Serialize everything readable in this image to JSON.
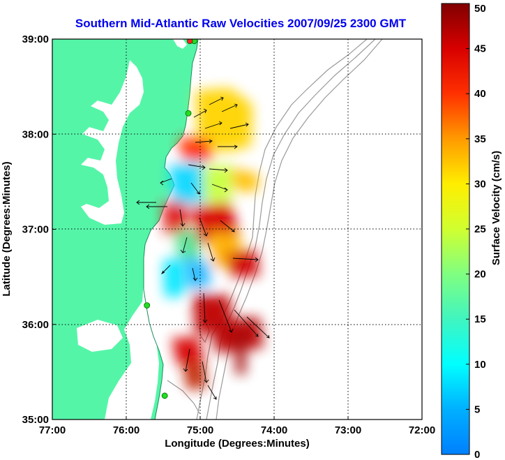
{
  "title": "Southern Mid-Atlantic Raw Velocities 2007/09/25 2300 GMT",
  "map": {
    "xlabel": "Longitude (Degrees:Minutes)",
    "ylabel": "Latitude (Degrees:Minutes)",
    "lon_range": [
      -77,
      -72
    ],
    "lat_range": [
      35,
      39
    ],
    "lon_ticks": [
      {
        "value": -77,
        "label": "77:00"
      },
      {
        "value": -76,
        "label": "76:00"
      },
      {
        "value": -75,
        "label": "75:00"
      },
      {
        "value": -74,
        "label": "74:00"
      },
      {
        "value": -73,
        "label": "73:00"
      },
      {
        "value": -72,
        "label": "72:00"
      }
    ],
    "lat_ticks": [
      {
        "value": 39,
        "label": "39:00"
      },
      {
        "value": 38,
        "label": "38:00"
      },
      {
        "value": 37,
        "label": "37:00"
      },
      {
        "value": 36,
        "label": "36:00"
      },
      {
        "value": 35,
        "label": "35:00"
      }
    ],
    "grid": true,
    "colors": {
      "land": "#55f5a8",
      "water": "#ffffff",
      "bathymetry": "#9a9a9a",
      "station": "#22dd22",
      "station_alt": "#ff2222",
      "vectors": "#000000"
    },
    "stations": [
      {
        "lon": -75.08,
        "lat": 38.98,
        "color": "#22dd22"
      },
      {
        "lon": -75.14,
        "lat": 38.98,
        "color": "#ff2222"
      },
      {
        "lon": -75.16,
        "lat": 38.22,
        "color": "#22dd22"
      },
      {
        "lon": -75.72,
        "lat": 36.2,
        "color": "#22dd22"
      },
      {
        "lon": -75.48,
        "lat": 35.25,
        "color": "#22dd22"
      }
    ]
  },
  "colorbar": {
    "label": "Surface Velocity (cm/s)",
    "min": 0,
    "max": 50,
    "ticks": [
      {
        "value": 0,
        "label": "0"
      },
      {
        "value": 5,
        "label": "5"
      },
      {
        "value": 10,
        "label": "10"
      },
      {
        "value": 15,
        "label": "15"
      },
      {
        "value": 20,
        "label": "20"
      },
      {
        "value": 25,
        "label": "25"
      },
      {
        "value": 30,
        "label": "30"
      },
      {
        "value": 35,
        "label": "35"
      },
      {
        "value": 40,
        "label": "40"
      },
      {
        "value": 45,
        "label": "45"
      },
      {
        "value": 50,
        "label": "50"
      }
    ]
  },
  "chart_data": {
    "type": "heatmap",
    "title": "Southern Mid-Atlantic Raw Velocities 2007/09/25 2300 GMT",
    "xlabel": "Longitude (Degrees:Minutes)",
    "ylabel": "Latitude (Degrees:Minutes)",
    "xlim": [
      -77,
      -72
    ],
    "ylim": [
      35,
      39
    ],
    "value_label": "Surface Velocity (cm/s)",
    "value_range": [
      0,
      50
    ],
    "grid": true,
    "velocity_regions": [
      {
        "lon": -74.85,
        "lat": 38.35,
        "speed": 28
      },
      {
        "lon": -74.75,
        "lat": 38.2,
        "speed": 25
      },
      {
        "lon": -74.6,
        "lat": 38.0,
        "speed": 30
      },
      {
        "lon": -75.2,
        "lat": 37.9,
        "speed": 42
      },
      {
        "lon": -75.35,
        "lat": 37.5,
        "speed": 14
      },
      {
        "lon": -75.1,
        "lat": 37.45,
        "speed": 18
      },
      {
        "lon": -74.8,
        "lat": 37.55,
        "speed": 24
      },
      {
        "lon": -74.55,
        "lat": 37.45,
        "speed": 30
      },
      {
        "lon": -75.35,
        "lat": 37.2,
        "speed": 40
      },
      {
        "lon": -74.95,
        "lat": 37.05,
        "speed": 45
      },
      {
        "lon": -74.7,
        "lat": 37.0,
        "speed": 38
      },
      {
        "lon": -75.2,
        "lat": 36.85,
        "speed": 22
      },
      {
        "lon": -74.85,
        "lat": 36.75,
        "speed": 28
      },
      {
        "lon": -74.45,
        "lat": 36.65,
        "speed": 46
      },
      {
        "lon": -75.35,
        "lat": 36.55,
        "speed": 10
      },
      {
        "lon": -75.05,
        "lat": 36.6,
        "speed": 16
      },
      {
        "lon": -74.9,
        "lat": 36.15,
        "speed": 44
      },
      {
        "lon": -74.55,
        "lat": 36.0,
        "speed": 47
      },
      {
        "lon": -74.45,
        "lat": 35.75,
        "speed": 48
      },
      {
        "lon": -75.15,
        "lat": 35.55,
        "speed": 40
      },
      {
        "lon": -75.0,
        "lat": 35.35,
        "speed": 38
      }
    ],
    "vectors": [
      {
        "lon": -74.9,
        "lat": 38.35,
        "u": 14,
        "v": 10
      },
      {
        "lon": -74.75,
        "lat": 38.25,
        "u": 16,
        "v": 8
      },
      {
        "lon": -74.6,
        "lat": 38.1,
        "u": 18,
        "v": 4
      },
      {
        "lon": -75.0,
        "lat": 38.05,
        "u": 14,
        "v": 6
      },
      {
        "lon": -74.8,
        "lat": 37.95,
        "u": 18,
        "v": 2
      },
      {
        "lon": -75.2,
        "lat": 37.8,
        "u": 20,
        "v": -4
      },
      {
        "lon": -74.9,
        "lat": 37.75,
        "u": 22,
        "v": -2
      },
      {
        "lon": -74.6,
        "lat": 37.7,
        "u": 18,
        "v": 6
      },
      {
        "lon": -75.35,
        "lat": 37.55,
        "u": -10,
        "v": -8
      },
      {
        "lon": -75.1,
        "lat": 37.5,
        "u": 10,
        "v": -12
      },
      {
        "lon": -74.8,
        "lat": 37.45,
        "u": 16,
        "v": -6
      },
      {
        "lon": -75.6,
        "lat": 37.3,
        "u": -20,
        "v": 0
      },
      {
        "lon": -75.35,
        "lat": 37.2,
        "u": 4,
        "v": -20
      },
      {
        "lon": -75.05,
        "lat": 37.1,
        "u": 10,
        "v": -22
      },
      {
        "lon": -74.75,
        "lat": 37.05,
        "u": 16,
        "v": -14
      },
      {
        "lon": -75.25,
        "lat": 36.9,
        "u": -6,
        "v": -14
      },
      {
        "lon": -74.95,
        "lat": 36.8,
        "u": 8,
        "v": -18
      },
      {
        "lon": -74.5,
        "lat": 36.65,
        "u": 24,
        "v": -4
      },
      {
        "lon": -75.4,
        "lat": 36.55,
        "u": -8,
        "v": -8
      },
      {
        "lon": -75.1,
        "lat": 36.5,
        "u": 4,
        "v": -12
      },
      {
        "lon": -74.9,
        "lat": 36.3,
        "u": 2,
        "v": -28
      },
      {
        "lon": -74.65,
        "lat": 36.15,
        "u": 12,
        "v": -26
      },
      {
        "lon": -74.45,
        "lat": 35.95,
        "u": 20,
        "v": -22
      },
      {
        "lon": -74.3,
        "lat": 35.8,
        "u": 18,
        "v": -16
      },
      {
        "lon": -75.2,
        "lat": 35.7,
        "u": -4,
        "v": -20
      },
      {
        "lon": -75.0,
        "lat": 35.5,
        "u": 4,
        "v": -18
      },
      {
        "lon": -74.9,
        "lat": 35.35,
        "u": 8,
        "v": -12
      }
    ]
  }
}
